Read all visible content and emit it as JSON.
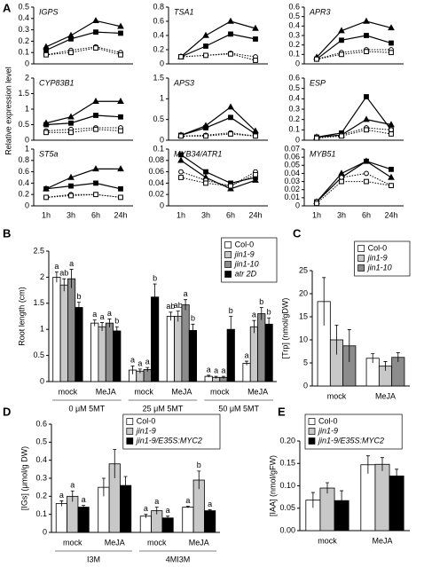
{
  "panels": [
    "A",
    "B",
    "C",
    "D",
    "E"
  ],
  "panel_a_ylabel": "Relative expression level",
  "chart_data": [
    {
      "type": "line",
      "title": "IGPS",
      "ylim": [
        0,
        0.5
      ],
      "yticks": [
        0,
        0.1,
        0.2,
        0.3,
        0.4,
        0.5
      ],
      "series": [
        {
          "marker": "triangle",
          "filled": true,
          "line": "solid",
          "values": [
            0.15,
            0.25,
            0.38,
            0.33
          ]
        },
        {
          "marker": "square",
          "filled": true,
          "line": "solid",
          "values": [
            0.12,
            0.22,
            0.28,
            0.27
          ]
        },
        {
          "marker": "circle",
          "filled": false,
          "line": "dotted",
          "values": [
            0.08,
            0.12,
            0.15,
            0.1
          ]
        },
        {
          "marker": "square",
          "filled": false,
          "line": "dotted",
          "values": [
            0.08,
            0.1,
            0.14,
            0.08
          ]
        }
      ]
    },
    {
      "type": "line",
      "title": "TSA1",
      "ylim": [
        0,
        0.8
      ],
      "yticks": [
        0,
        0.2,
        0.4,
        0.6,
        0.8
      ],
      "series": [
        {
          "marker": "triangle",
          "filled": true,
          "line": "solid",
          "values": [
            0.1,
            0.4,
            0.6,
            0.5
          ]
        },
        {
          "marker": "square",
          "filled": true,
          "line": "solid",
          "values": [
            0.1,
            0.25,
            0.42,
            0.35
          ]
        },
        {
          "marker": "circle",
          "filled": false,
          "line": "dotted",
          "values": [
            0.1,
            0.12,
            0.15,
            0.1
          ]
        },
        {
          "marker": "square",
          "filled": false,
          "line": "dotted",
          "values": [
            0.1,
            0.12,
            0.14,
            0.05
          ]
        }
      ]
    },
    {
      "type": "line",
      "title": "APR3",
      "ylim": [
        0,
        0.6
      ],
      "yticks": [
        0,
        0.1,
        0.2,
        0.3,
        0.4,
        0.5,
        0.6
      ],
      "series": [
        {
          "marker": "triangle",
          "filled": true,
          "line": "solid",
          "values": [
            0.07,
            0.35,
            0.45,
            0.38
          ]
        },
        {
          "marker": "square",
          "filled": true,
          "line": "solid",
          "values": [
            0.05,
            0.25,
            0.3,
            0.22
          ]
        },
        {
          "marker": "circle",
          "filled": false,
          "line": "dotted",
          "values": [
            0.05,
            0.12,
            0.15,
            0.15
          ]
        },
        {
          "marker": "square",
          "filled": false,
          "line": "dotted",
          "values": [
            0.05,
            0.1,
            0.13,
            0.12
          ]
        }
      ]
    },
    {
      "type": "line",
      "title": "CYP83B1",
      "ylim": [
        0,
        2
      ],
      "yticks": [
        0,
        0.5,
        1,
        1.5,
        2
      ],
      "series": [
        {
          "marker": "triangle",
          "filled": true,
          "line": "solid",
          "values": [
            0.55,
            0.75,
            1.25,
            1.25
          ]
        },
        {
          "marker": "square",
          "filled": true,
          "line": "solid",
          "values": [
            0.5,
            0.55,
            0.8,
            0.75
          ]
        },
        {
          "marker": "circle",
          "filled": false,
          "line": "dotted",
          "values": [
            0.3,
            0.35,
            0.4,
            0.4
          ]
        },
        {
          "marker": "square",
          "filled": false,
          "line": "dotted",
          "values": [
            0.25,
            0.25,
            0.35,
            0.3
          ]
        }
      ]
    },
    {
      "type": "line",
      "title": "APS3",
      "ylim": [
        0,
        1.5
      ],
      "yticks": [
        0,
        0.5,
        1,
        1.5
      ],
      "series": [
        {
          "marker": "triangle",
          "filled": true,
          "line": "solid",
          "values": [
            0.12,
            0.35,
            0.8,
            0.22
          ]
        },
        {
          "marker": "square",
          "filled": true,
          "line": "solid",
          "values": [
            0.12,
            0.3,
            0.55,
            0.15
          ]
        },
        {
          "marker": "circle",
          "filled": false,
          "line": "dotted",
          "values": [
            0.1,
            0.12,
            0.18,
            0.1
          ]
        },
        {
          "marker": "square",
          "filled": false,
          "line": "dotted",
          "values": [
            0.1,
            0.1,
            0.15,
            0.1
          ]
        }
      ]
    },
    {
      "type": "line",
      "title": "ESP",
      "ylim": [
        0,
        0.6
      ],
      "yticks": [
        0,
        0.1,
        0.2,
        0.3,
        0.4,
        0.5,
        0.6
      ],
      "series": [
        {
          "marker": "triangle",
          "filled": true,
          "line": "solid",
          "values": [
            0.03,
            0.05,
            0.2,
            0.15
          ]
        },
        {
          "marker": "square",
          "filled": true,
          "line": "solid",
          "values": [
            0.03,
            0.07,
            0.42,
            0.1
          ]
        },
        {
          "marker": "circle",
          "filled": false,
          "line": "dotted",
          "values": [
            0.03,
            0.05,
            0.12,
            0.1
          ]
        },
        {
          "marker": "square",
          "filled": false,
          "line": "dotted",
          "values": [
            0.02,
            0.04,
            0.1,
            0.06
          ]
        }
      ]
    },
    {
      "type": "line",
      "title": "ST5a",
      "ylim": [
        0,
        1
      ],
      "yticks": [
        0,
        0.2,
        0.4,
        0.6,
        0.8,
        1
      ],
      "categories": [
        "1h",
        "3h",
        "6h",
        "24h"
      ],
      "series": [
        {
          "marker": "triangle",
          "filled": true,
          "line": "solid",
          "values": [
            0.3,
            0.5,
            0.65,
            0.65
          ]
        },
        {
          "marker": "square",
          "filled": true,
          "line": "solid",
          "values": [
            0.3,
            0.35,
            0.4,
            0.3
          ]
        },
        {
          "marker": "circle",
          "filled": false,
          "line": "dotted",
          "values": [
            0.15,
            0.2,
            0.2,
            0.15
          ]
        },
        {
          "marker": "square",
          "filled": false,
          "line": "dotted",
          "values": [
            0.15,
            0.18,
            0.2,
            0.15
          ]
        }
      ]
    },
    {
      "type": "line",
      "title": "MYB34/ATR1",
      "ylim": [
        0,
        0.1
      ],
      "yticks": [
        0,
        0.02,
        0.04,
        0.06,
        0.08,
        0.1
      ],
      "categories": [
        "1h",
        "3h",
        "6h",
        "24h"
      ],
      "series": [
        {
          "marker": "triangle",
          "filled": true,
          "line": "solid",
          "values": [
            0.08,
            0.05,
            0.03,
            0.045
          ]
        },
        {
          "marker": "square",
          "filled": true,
          "line": "solid",
          "values": [
            0.09,
            0.06,
            0.04,
            0.05
          ]
        },
        {
          "marker": "circle",
          "filled": false,
          "line": "dotted",
          "values": [
            0.06,
            0.045,
            0.035,
            0.06
          ]
        },
        {
          "marker": "square",
          "filled": false,
          "line": "dotted",
          "values": [
            0.05,
            0.04,
            0.035,
            0.055
          ]
        }
      ]
    },
    {
      "type": "line",
      "title": "MYB51",
      "ylim": [
        0,
        0.07
      ],
      "yticks": [
        0,
        0.01,
        0.02,
        0.03,
        0.04,
        0.05,
        0.06,
        0.07
      ],
      "categories": [
        "1h",
        "3h",
        "6h",
        "24h"
      ],
      "series": [
        {
          "marker": "triangle",
          "filled": true,
          "line": "solid",
          "values": [
            0.005,
            0.04,
            0.055,
            0.035
          ]
        },
        {
          "marker": "square",
          "filled": true,
          "line": "solid",
          "values": [
            0.005,
            0.035,
            0.055,
            0.045
          ]
        },
        {
          "marker": "circle",
          "filled": false,
          "line": "dotted",
          "values": [
            0.005,
            0.035,
            0.04,
            0.025
          ]
        },
        {
          "marker": "square",
          "filled": false,
          "line": "dotted",
          "values": [
            0.003,
            0.03,
            0.03,
            0.025
          ]
        }
      ]
    },
    {
      "type": "bar",
      "ylabel": "Root length (cm)",
      "ylim": [
        0,
        2.5
      ],
      "yticks": [
        0,
        0.5,
        1,
        1.5,
        2,
        2.5
      ],
      "legend": "upper right",
      "categories": [
        "mock",
        "MeJA",
        "mock",
        "MeJA",
        "mock",
        "MeJA"
      ],
      "groups": [
        "0 μM 5MT",
        "25 μM 5MT",
        "50 μM 5MT"
      ],
      "series": [
        {
          "name": "Col-0",
          "color": "#ffffff",
          "italic": false,
          "values": [
            2.0,
            1.12,
            0.22,
            1.25,
            0.1,
            0.35
          ],
          "errors": [
            0.1,
            0.06,
            0.08,
            0.08,
            0.02,
            0.04
          ],
          "letters": [
            "a",
            "a",
            "a",
            "ab",
            "a",
            "a"
          ]
        },
        {
          "name": "jin1-9",
          "color": "#c8c8c8",
          "italic": true,
          "values": [
            1.85,
            1.05,
            0.2,
            1.25,
            0.08,
            1.05
          ],
          "errors": [
            0.12,
            0.08,
            0.04,
            0.1,
            0.02,
            0.12
          ],
          "letters": [
            "ab",
            "a",
            "a",
            "ab",
            "a",
            "a"
          ]
        },
        {
          "name": "jin1-10",
          "color": "#8c8c8c",
          "italic": true,
          "values": [
            1.97,
            1.12,
            0.23,
            1.47,
            0.08,
            1.3
          ],
          "errors": [
            0.18,
            0.08,
            0.04,
            0.1,
            0.02,
            0.12
          ],
          "letters": [
            "a",
            "a",
            "a",
            "a",
            "a",
            "b"
          ]
        },
        {
          "name": "atr 2D",
          "color": "#000000",
          "italic": true,
          "values": [
            1.42,
            0.97,
            1.62,
            0.98,
            1.0,
            1.1
          ],
          "errors": [
            0.1,
            0.08,
            0.25,
            0.12,
            0.25,
            0.12
          ],
          "letters": [
            "b",
            "b",
            "b",
            "b",
            "b",
            "b"
          ]
        }
      ]
    },
    {
      "type": "bar",
      "ylabel": "[Trp] (nmol/gDW)",
      "ylim": [
        0,
        25
      ],
      "yticks": [
        0,
        5,
        10,
        15,
        20,
        25
      ],
      "legend": "upper right",
      "categories": [
        "mock",
        "MeJA"
      ],
      "series": [
        {
          "name": "Col-0",
          "color": "#ffffff",
          "italic": false,
          "values": [
            18.3,
            6.0
          ],
          "errors": [
            5.2,
            1.0
          ]
        },
        {
          "name": "jin1-9",
          "color": "#c8c8c8",
          "italic": true,
          "values": [
            10.0,
            4.3
          ],
          "errors": [
            3.2,
            1.0
          ]
        },
        {
          "name": "jin1-10",
          "color": "#8c8c8c",
          "italic": true,
          "values": [
            8.7,
            6.2
          ],
          "errors": [
            3.5,
            1.0
          ]
        }
      ]
    },
    {
      "type": "bar",
      "ylabel": "[IGs] (μmol/g DW)",
      "ylim": [
        0,
        0.6
      ],
      "yticks": [
        0,
        0.1,
        0.2,
        0.3,
        0.4,
        0.5,
        0.6
      ],
      "legend": "upper right",
      "categories": [
        "mock",
        "MeJA",
        "mock",
        "MeJA"
      ],
      "groups": [
        "I3M",
        "4MI3M"
      ],
      "series": [
        {
          "name": "Col-0",
          "color": "#ffffff",
          "italic": false,
          "values": [
            0.16,
            0.25,
            0.09,
            0.14
          ],
          "errors": [
            0.015,
            0.05,
            0.01,
            0.005
          ],
          "letters": [
            "a",
            null,
            "a",
            "a"
          ]
        },
        {
          "name": "jin1-9",
          "color": "#c8c8c8",
          "italic": true,
          "values": [
            0.2,
            0.38,
            0.12,
            0.29
          ],
          "errors": [
            0.03,
            0.08,
            0.02,
            0.05
          ],
          "letters": [
            "a",
            null,
            "a",
            "b"
          ]
        },
        {
          "name": "jin1-9/E35S:MYC2",
          "color": "#000000",
          "italic": true,
          "values": [
            0.14,
            0.26,
            0.08,
            0.12
          ],
          "errors": [
            0.01,
            0.05,
            0.01,
            0.005
          ],
          "letters": [
            "a",
            null,
            "a",
            "a"
          ]
        }
      ]
    },
    {
      "type": "bar",
      "ylabel": "[IAA] (nmol/gFW)",
      "ylim": [
        0,
        0.2
      ],
      "legend": "upper left",
      "yticks": [
        {
          "value": 0,
          "label": "0.00"
        },
        {
          "value": 0.05,
          "label": "0.05"
        },
        {
          "value": 0.1,
          "label": "0.10"
        },
        {
          "value": 0.15,
          "label": "0.15"
        },
        {
          "value": 0.2,
          "label": "0.20"
        }
      ],
      "categories": [
        "mock",
        "MeJA"
      ],
      "series": [
        {
          "name": "Col-0",
          "color": "#ffffff",
          "italic": false,
          "values": [
            0.068,
            0.147
          ],
          "errors": [
            0.017,
            0.02
          ]
        },
        {
          "name": "jin1-9",
          "color": "#c8c8c8",
          "italic": true,
          "values": [
            0.095,
            0.148
          ],
          "errors": [
            0.012,
            0.015
          ]
        },
        {
          "name": "jin1-9/E35S:MYC2",
          "color": "#000000",
          "italic": true,
          "values": [
            0.067,
            0.122
          ],
          "errors": [
            0.022,
            0.015
          ]
        }
      ]
    }
  ]
}
